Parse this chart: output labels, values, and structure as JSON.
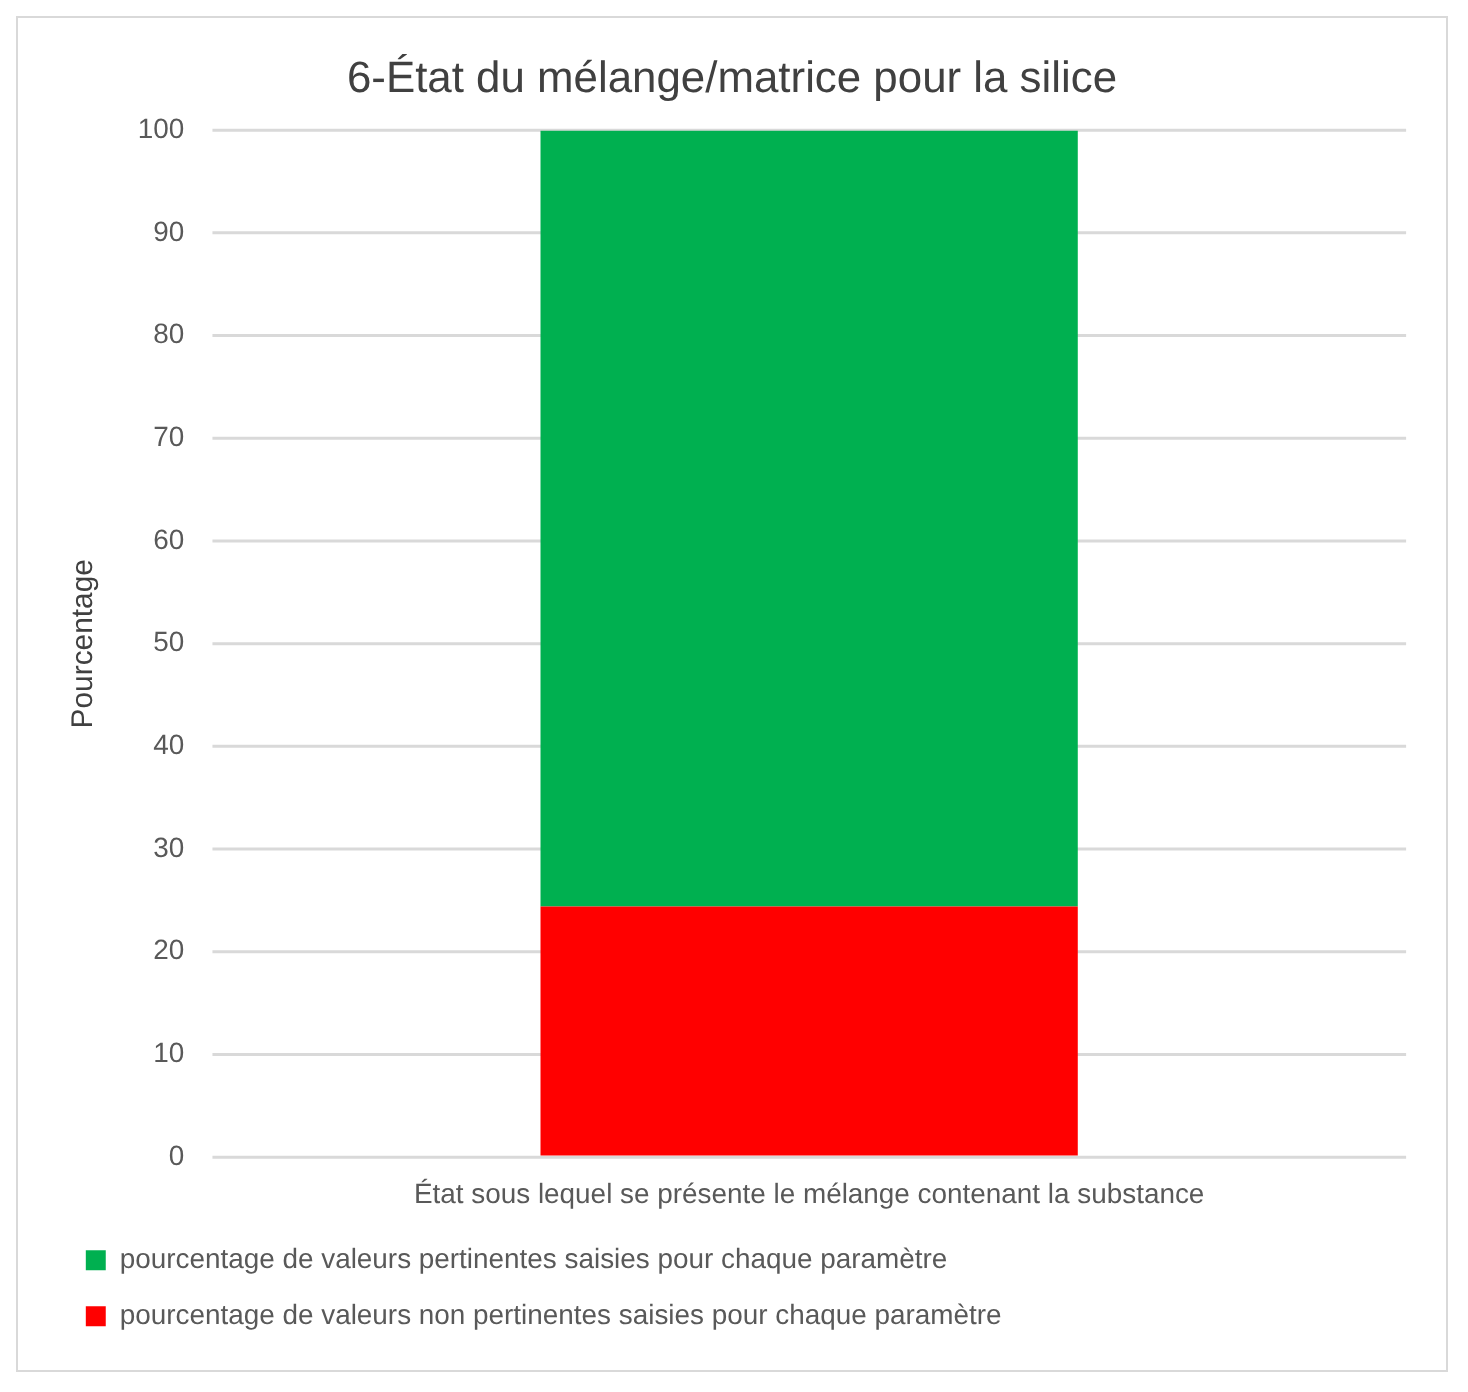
{
  "chart_data": {
    "type": "bar",
    "title": "6-État du mélange/matrice pour la silice",
    "ylabel": "Pourcentage",
    "categories": [
      "État sous lequel se présente le mélange contenant la substance"
    ],
    "stacked": true,
    "series": [
      {
        "name": "pourcentage de valeurs non pertinentes saisies pour chaque paramètre",
        "color": "#ff0000",
        "values": [
          24.4
        ]
      },
      {
        "name": "pourcentage de valeurs pertinentes saisies pour chaque paramètre",
        "color": "#00b050",
        "values": [
          75.6
        ]
      }
    ],
    "ylim": [
      0,
      100
    ],
    "yticks": [
      0,
      10,
      20,
      30,
      40,
      50,
      60,
      70,
      80,
      90,
      100
    ],
    "grid": "y",
    "legend": "bottom"
  }
}
